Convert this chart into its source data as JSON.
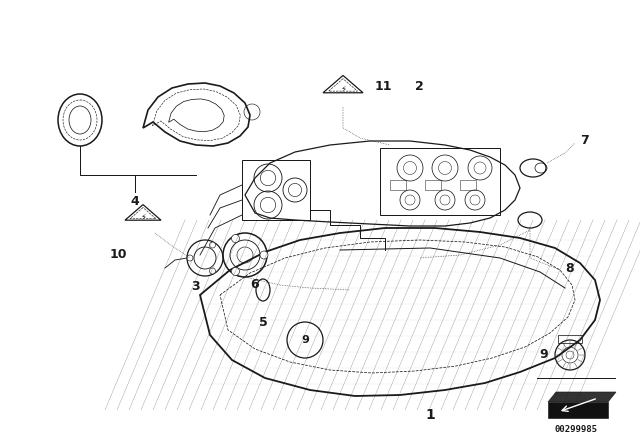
{
  "bg_color": "#ffffff",
  "line_color": "#1a1a1a",
  "part_number": "00299985",
  "figsize": [
    6.4,
    4.48
  ],
  "dpi": 100
}
